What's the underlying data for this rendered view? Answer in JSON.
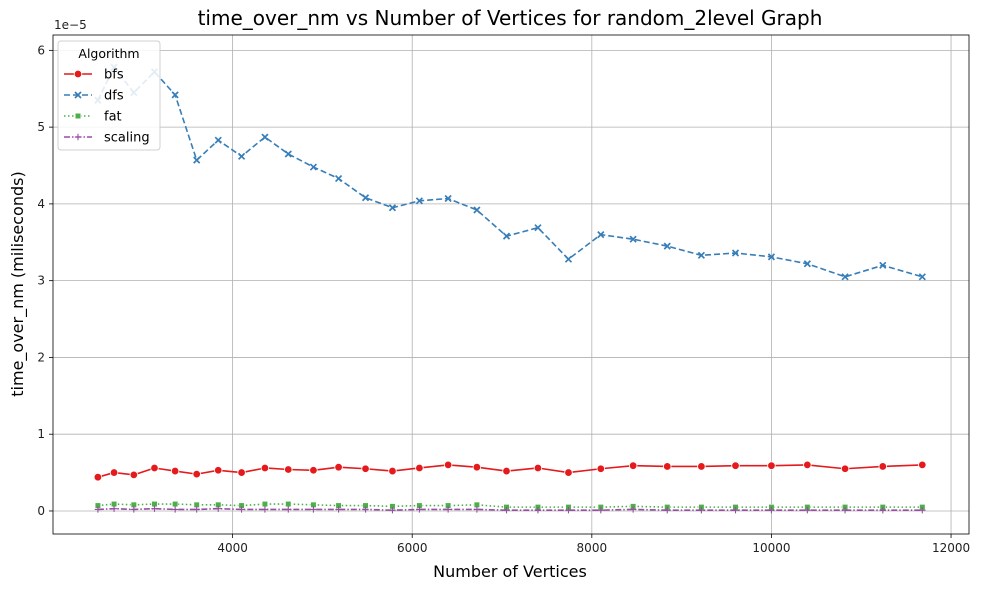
{
  "chart_data": {
    "type": "line",
    "title": "time_over_nm vs Number of Vertices for random_2level Graph",
    "xlabel": "Number of Vertices",
    "ylabel": "time_over_nm (miliseconds)",
    "y_offset_label": "1e−5",
    "xlim": [
      2000,
      12200
    ],
    "ylim": [
      -0.3,
      6.2
    ],
    "x_ticks": [
      4000,
      6000,
      8000,
      10000,
      12000
    ],
    "x_tick_labels": [
      "4000",
      "6000",
      "8000",
      "10000",
      "12000"
    ],
    "y_ticks": [
      0,
      1,
      2,
      3,
      4,
      5,
      6
    ],
    "y_tick_labels": [
      "0",
      "1",
      "2",
      "3",
      "4",
      "5",
      "6"
    ],
    "grid": true,
    "legend": {
      "title": "Algorithm",
      "placement": "top-left"
    },
    "x": [
      2500,
      2680,
      2900,
      3130,
      3360,
      3600,
      3840,
      4100,
      4360,
      4620,
      4900,
      5180,
      5480,
      5780,
      6080,
      6400,
      6720,
      7050,
      7400,
      7740,
      8100,
      8460,
      8840,
      9220,
      9600,
      10000,
      10400,
      10820,
      11240,
      11680
    ],
    "series": [
      {
        "name": "bfs",
        "color": "#e41a1c",
        "dash": "solid",
        "marker": "circle",
        "values": [
          0.44,
          0.5,
          0.47,
          0.56,
          0.52,
          0.48,
          0.53,
          0.5,
          0.56,
          0.54,
          0.53,
          0.57,
          0.55,
          0.52,
          0.56,
          0.6,
          0.57,
          0.52,
          0.56,
          0.5,
          0.55,
          0.59,
          0.58,
          0.58,
          0.59,
          0.59,
          0.6,
          0.55,
          0.58,
          0.6
        ]
      },
      {
        "name": "dfs",
        "color": "#377eb8",
        "dash": "dashed",
        "marker": "x",
        "values": [
          5.35,
          5.78,
          5.45,
          5.72,
          5.42,
          4.57,
          4.83,
          4.62,
          4.87,
          4.65,
          4.48,
          4.33,
          4.08,
          3.95,
          4.04,
          4.07,
          3.92,
          3.58,
          3.69,
          3.28,
          3.6,
          3.54,
          3.45,
          3.33,
          3.36,
          3.31,
          3.22,
          3.05,
          3.2,
          3.05
        ]
      },
      {
        "name": "fat",
        "color": "#4daf4a",
        "dash": "dotted",
        "marker": "square",
        "values": [
          0.07,
          0.09,
          0.08,
          0.09,
          0.09,
          0.08,
          0.08,
          0.07,
          0.09,
          0.09,
          0.08,
          0.07,
          0.07,
          0.06,
          0.07,
          0.07,
          0.08,
          0.05,
          0.05,
          0.05,
          0.05,
          0.06,
          0.05,
          0.05,
          0.05,
          0.05,
          0.05,
          0.05,
          0.05,
          0.05
        ]
      },
      {
        "name": "scaling",
        "color": "#984ea3",
        "dash": "dashdot",
        "marker": "plus",
        "values": [
          0.02,
          0.03,
          0.02,
          0.03,
          0.02,
          0.02,
          0.03,
          0.02,
          0.02,
          0.02,
          0.02,
          0.02,
          0.02,
          0.01,
          0.02,
          0.02,
          0.02,
          0.01,
          0.01,
          0.01,
          0.01,
          0.02,
          0.01,
          0.01,
          0.01,
          0.01,
          0.01,
          0.01,
          0.01,
          0.01
        ]
      }
    ]
  }
}
